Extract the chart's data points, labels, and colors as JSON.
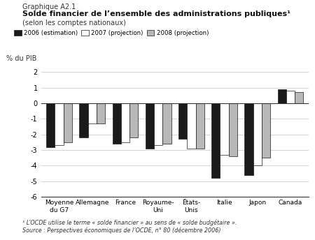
{
  "categories": [
    "Moyenne\ndu G7",
    "Allemagne",
    "France",
    "Royaume-\nUni",
    "États-\nUnis",
    "Italie",
    "Japon",
    "Canada"
  ],
  "series_2006": [
    -2.8,
    -2.2,
    -2.6,
    -2.9,
    -2.3,
    -4.8,
    -4.6,
    0.9
  ],
  "series_2007": [
    -2.7,
    -1.3,
    -2.5,
    -2.7,
    -2.9,
    -3.3,
    -4.0,
    0.8
  ],
  "series_2008": [
    -2.5,
    -1.3,
    -2.2,
    -2.6,
    -2.9,
    -3.4,
    -3.5,
    0.7
  ],
  "color_2006": "#1a1a1a",
  "color_2007": "#ffffff",
  "color_2008": "#b8b8b8",
  "edge_color": "#1a1a1a",
  "ylim": [
    -6,
    2
  ],
  "yticks": [
    -6,
    -5,
    -4,
    -3,
    -2,
    -1,
    0,
    1,
    2
  ],
  "ylabel": "% du PIB",
  "title_line1": "Graphique A2.1",
  "title_line2": "Solde financier de l’ensemble des administrations publiques¹",
  "title_line3": "(selon les comptes nationaux)",
  "legend_labels": [
    "2006 (estimation)",
    "2007 (projection)",
    "2008 (projection)"
  ],
  "footnote1": "¹ L’OCDE utilise le terme « solde financier » au sens de « solde budgétaire ».",
  "footnote2": "Source : Perspectives économiques de l’OCDE, n° 80 (décembre 2006)",
  "bar_width": 0.26,
  "background_color": "#ffffff"
}
